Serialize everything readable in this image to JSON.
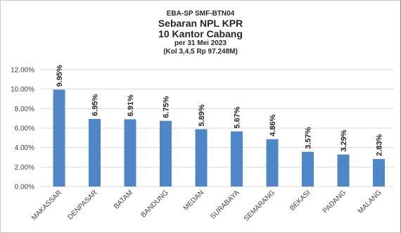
{
  "chart_data": {
    "type": "bar",
    "title_lines": [
      "EBA-SP  SMF-BTN04",
      "Sebaran NPL KPR",
      "10 Kantor Cabang",
      "per 31 Mei 2023",
      "(Kol 3,4,5 Rp 97.248M)"
    ],
    "categories": [
      "MAKASSAR",
      "DENPASAR",
      "BATAM",
      "BANDUNG",
      "MEDAN",
      "SURABAYA",
      "SEMARANG",
      "BEKASI",
      "PADANG",
      "MALANG"
    ],
    "values": [
      9.95,
      6.95,
      6.91,
      6.75,
      5.89,
      5.67,
      4.86,
      3.57,
      3.29,
      2.83
    ],
    "data_labels": [
      "9.95%",
      "6.95%",
      "6.91%",
      "6.75%",
      "5.89%",
      "5.67%",
      "4.86%",
      "3.57%",
      "3.29%",
      "2.83%"
    ],
    "yticks": [
      0,
      2,
      4,
      6,
      8,
      10,
      12
    ],
    "ytick_labels": [
      "0.00%",
      "2.00%",
      "4.00%",
      "6.00%",
      "8.00%",
      "10.00%",
      "12.00%"
    ],
    "ylim": [
      0,
      12
    ],
    "xlabel": "",
    "ylabel": "",
    "grid": true,
    "legend": "none",
    "bar_color": "#4f86c6",
    "grid_color": "#d9d9d9"
  }
}
